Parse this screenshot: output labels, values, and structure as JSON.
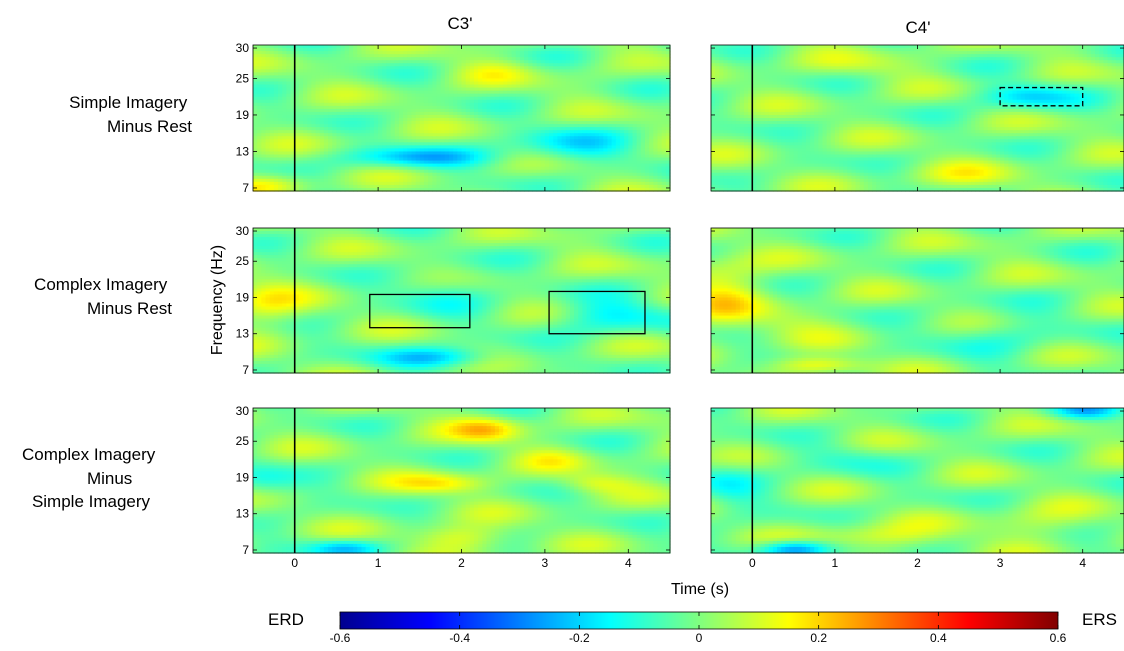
{
  "figure": {
    "column_titles": [
      "C3'",
      "C4'"
    ],
    "row_labels": [
      [
        "Simple Imagery",
        "Minus Rest"
      ],
      [
        "Complex Imagery",
        "Minus Rest"
      ],
      [
        "Complex Imagery",
        "Minus",
        "Simple Imagery"
      ]
    ],
    "ylabel": "Frequency (Hz)",
    "xlabel": "Time (s)"
  },
  "chart_data": {
    "type": "heatmap",
    "layout": "3 rows x 2 columns of time-frequency maps",
    "x": {
      "label": "Time (s)",
      "range": [
        -0.5,
        4.5
      ],
      "ticks": [
        0,
        1,
        2,
        3,
        4
      ]
    },
    "y": {
      "label": "Frequency (Hz)",
      "range": [
        6.5,
        30.5
      ],
      "ticks": [
        7,
        13,
        19,
        25,
        30
      ]
    },
    "event_marker_time": 0,
    "colorbar": {
      "range": [
        -0.6,
        0.6
      ],
      "ticks": [
        -0.6,
        -0.4,
        -0.2,
        0,
        0.2,
        0.4,
        0.6
      ],
      "tick_labels": [
        "-0.6",
        "-0.4",
        "-0.2",
        "0",
        "0.2",
        "0.4",
        "0.6"
      ],
      "low_label": "ERD",
      "high_label": "ERS",
      "colormap": "jet"
    },
    "panels": [
      {
        "row": 1,
        "col": 1,
        "channel": "C3'",
        "blobs": [
          [
            1.5,
            12,
            -0.2,
            0.6,
            1.2
          ],
          [
            2.4,
            26,
            0.08,
            0.35,
            1.5
          ],
          [
            3.3,
            14,
            -0.15,
            0.5,
            2
          ],
          [
            -0.3,
            7.5,
            0.12,
            0.35,
            1.2
          ]
        ],
        "significant_regions": []
      },
      {
        "row": 1,
        "col": 2,
        "channel": "C4'",
        "blobs": [
          [
            3.3,
            22,
            -0.18,
            0.4,
            1.5
          ],
          [
            1.3,
            27,
            0.06,
            0.5,
            1.5
          ],
          [
            2.6,
            9,
            0.08,
            0.5,
            1.5
          ]
        ],
        "significant_regions": [
          {
            "style": "dashed",
            "time": [
              3.0,
              4.0
            ],
            "freq": [
              20.5,
              23.5
            ]
          }
        ]
      },
      {
        "row": 2,
        "col": 1,
        "channel": "C3'",
        "blobs": [
          [
            -0.4,
            18,
            0.12,
            0.35,
            3
          ],
          [
            1.7,
            9,
            -0.2,
            0.5,
            1.2
          ],
          [
            1.8,
            20,
            -0.1,
            0.4,
            2.5
          ],
          [
            3.8,
            16,
            -0.15,
            0.5,
            2
          ]
        ],
        "significant_regions": [
          {
            "style": "solid",
            "time": [
              0.9,
              2.1
            ],
            "freq": [
              14,
              19.5
            ]
          },
          {
            "style": "solid",
            "time": [
              3.05,
              4.2
            ],
            "freq": [
              13,
              20
            ]
          }
        ]
      },
      {
        "row": 2,
        "col": 2,
        "channel": "C4'",
        "blobs": [
          [
            -0.4,
            20,
            0.15,
            0.35,
            4
          ],
          [
            0.8,
            7.8,
            0.18,
            0.4,
            1
          ],
          [
            0.5,
            15,
            0.07,
            0.4,
            2
          ],
          [
            3,
            13,
            -0.07,
            0.6,
            3
          ]
        ],
        "significant_regions": []
      },
      {
        "row": 3,
        "col": 1,
        "channel": "C3'",
        "blobs": [
          [
            2.3,
            27,
            0.2,
            0.3,
            1.5
          ],
          [
            1.8,
            18,
            0.15,
            0.4,
            1.2
          ],
          [
            2,
            9,
            0.15,
            0.4,
            1.5
          ],
          [
            0.6,
            7.3,
            -0.2,
            0.3,
            1
          ],
          [
            3.6,
            18,
            0.12,
            0.3,
            1.2
          ],
          [
            -0.4,
            18,
            -0.1,
            0.3,
            2
          ],
          [
            3.1,
            22,
            0.08,
            0.3,
            1.5
          ]
        ],
        "significant_regions": []
      },
      {
        "row": 3,
        "col": 2,
        "channel": "C4'",
        "blobs": [
          [
            0.5,
            7.2,
            -0.3,
            0.3,
            1
          ],
          [
            1.5,
            9,
            0.12,
            0.5,
            1.5
          ],
          [
            -0.3,
            18,
            -0.1,
            0.3,
            3
          ],
          [
            4,
            30,
            -0.2,
            0.3,
            1
          ],
          [
            3.4,
            11,
            0.08,
            0.5,
            2
          ],
          [
            1.2,
            22,
            -0.06,
            0.4,
            2
          ]
        ],
        "significant_regions": []
      }
    ]
  }
}
